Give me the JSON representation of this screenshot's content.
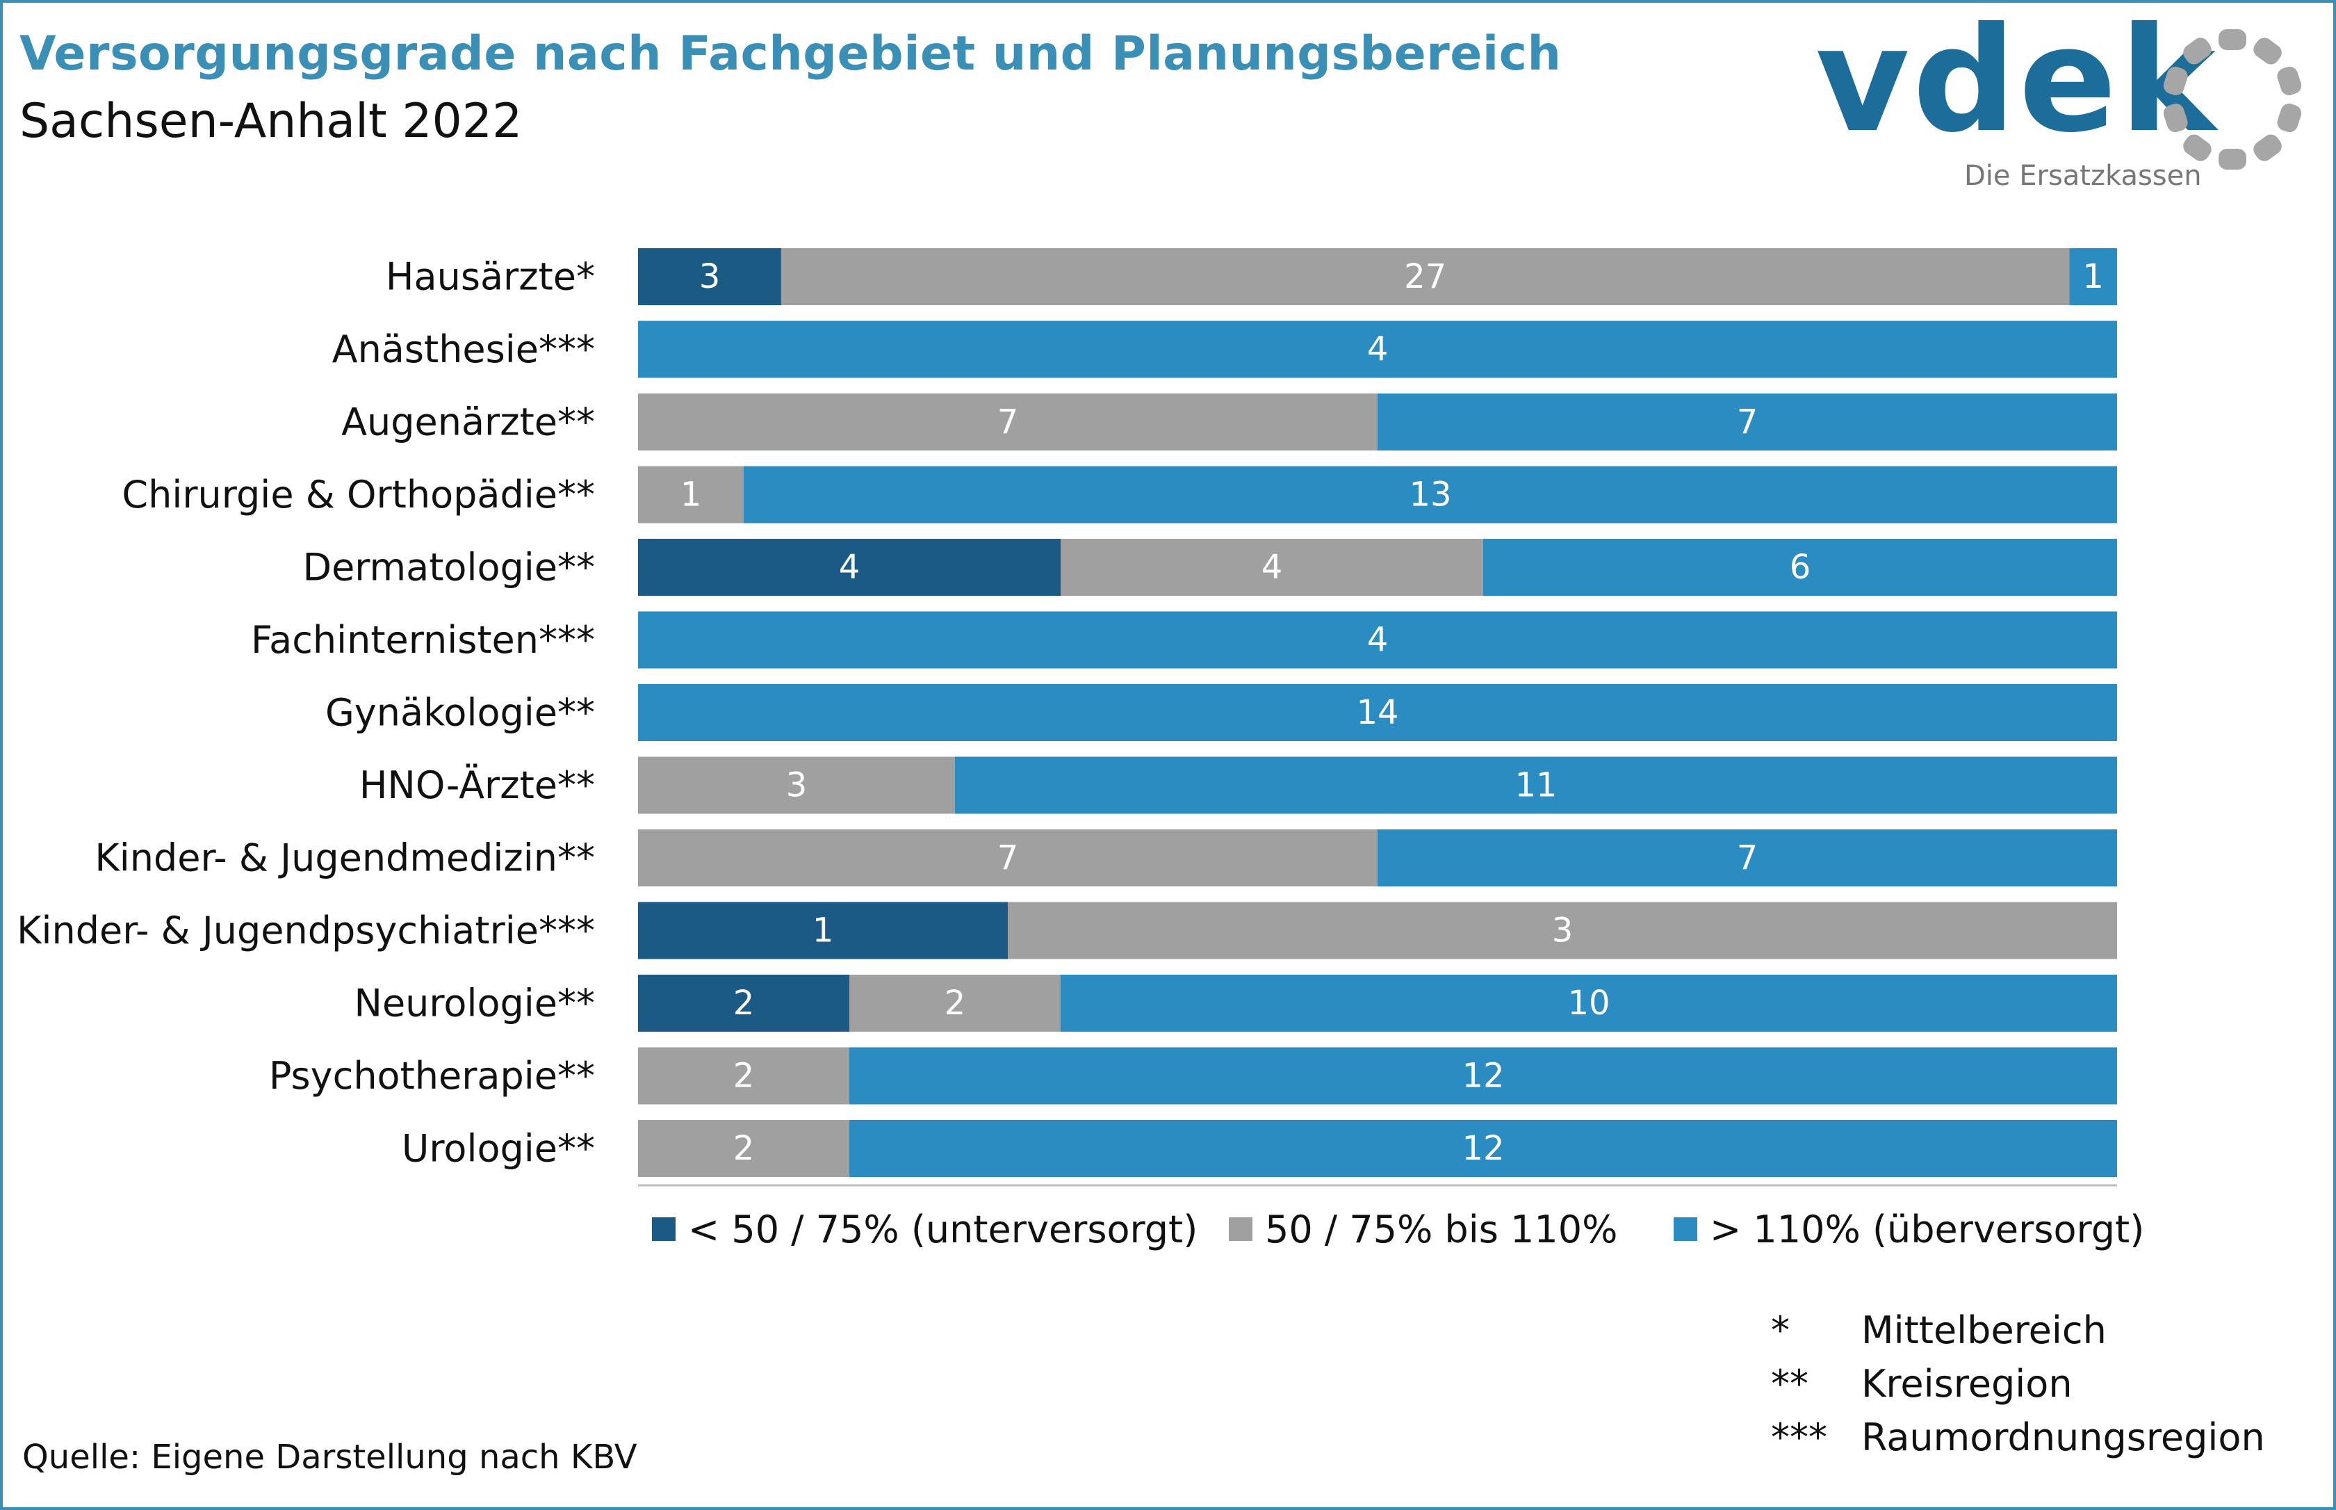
{
  "header": {
    "title": "Versorgungsgrade nach Fachgebiet und Planungsbereich",
    "subtitle": "Sachsen-Anhalt 2022"
  },
  "logo": {
    "word": "vdek",
    "tagline": "Die Ersatzkassen",
    "colors": {
      "word": "#1c6d99",
      "ring": "#a6a6a6"
    }
  },
  "chart_data": {
    "type": "bar",
    "orientation": "horizontal",
    "stacked": "100%",
    "title": "",
    "xlabel": "",
    "ylabel": "",
    "grid": false,
    "legend_position": "bottom",
    "categories": [
      "Hausärzte*",
      "Anästhesie***",
      "Augenärzte**",
      "Chirurgie & Orthopädie**",
      "Dermatologie**",
      "Fachinternisten***",
      "Gynäkologie**",
      "HNO-Ärzte**",
      "Kinder- & Jugendmedizin**",
      "Kinder- & Jugendpsychiatrie***",
      "Neurologie**",
      "Psychotherapie**",
      "Urologie**"
    ],
    "series": [
      {
        "name": "< 50 / 75% (unterversorgt)",
        "color": "#1a5a84",
        "values": [
          3,
          0,
          0,
          0,
          4,
          0,
          0,
          0,
          0,
          1,
          2,
          0,
          0
        ]
      },
      {
        "name": "50 / 75% bis 110%",
        "color": "#a0a0a0",
        "values": [
          27,
          0,
          7,
          1,
          4,
          0,
          0,
          3,
          7,
          3,
          2,
          2,
          2
        ]
      },
      {
        "name": "> 110% (überversorgt)",
        "color": "#2a8cc0",
        "values": [
          1,
          4,
          7,
          13,
          6,
          4,
          14,
          11,
          7,
          0,
          10,
          12,
          12
        ]
      }
    ]
  },
  "footnotes": [
    {
      "symbol": "*",
      "text": "Mittelbereich"
    },
    {
      "symbol": "**",
      "text": "Kreisregion"
    },
    {
      "symbol": "***",
      "text": "Raumordnungsregion"
    }
  ],
  "source": "Quelle: Eigene Darstellung nach KBV"
}
